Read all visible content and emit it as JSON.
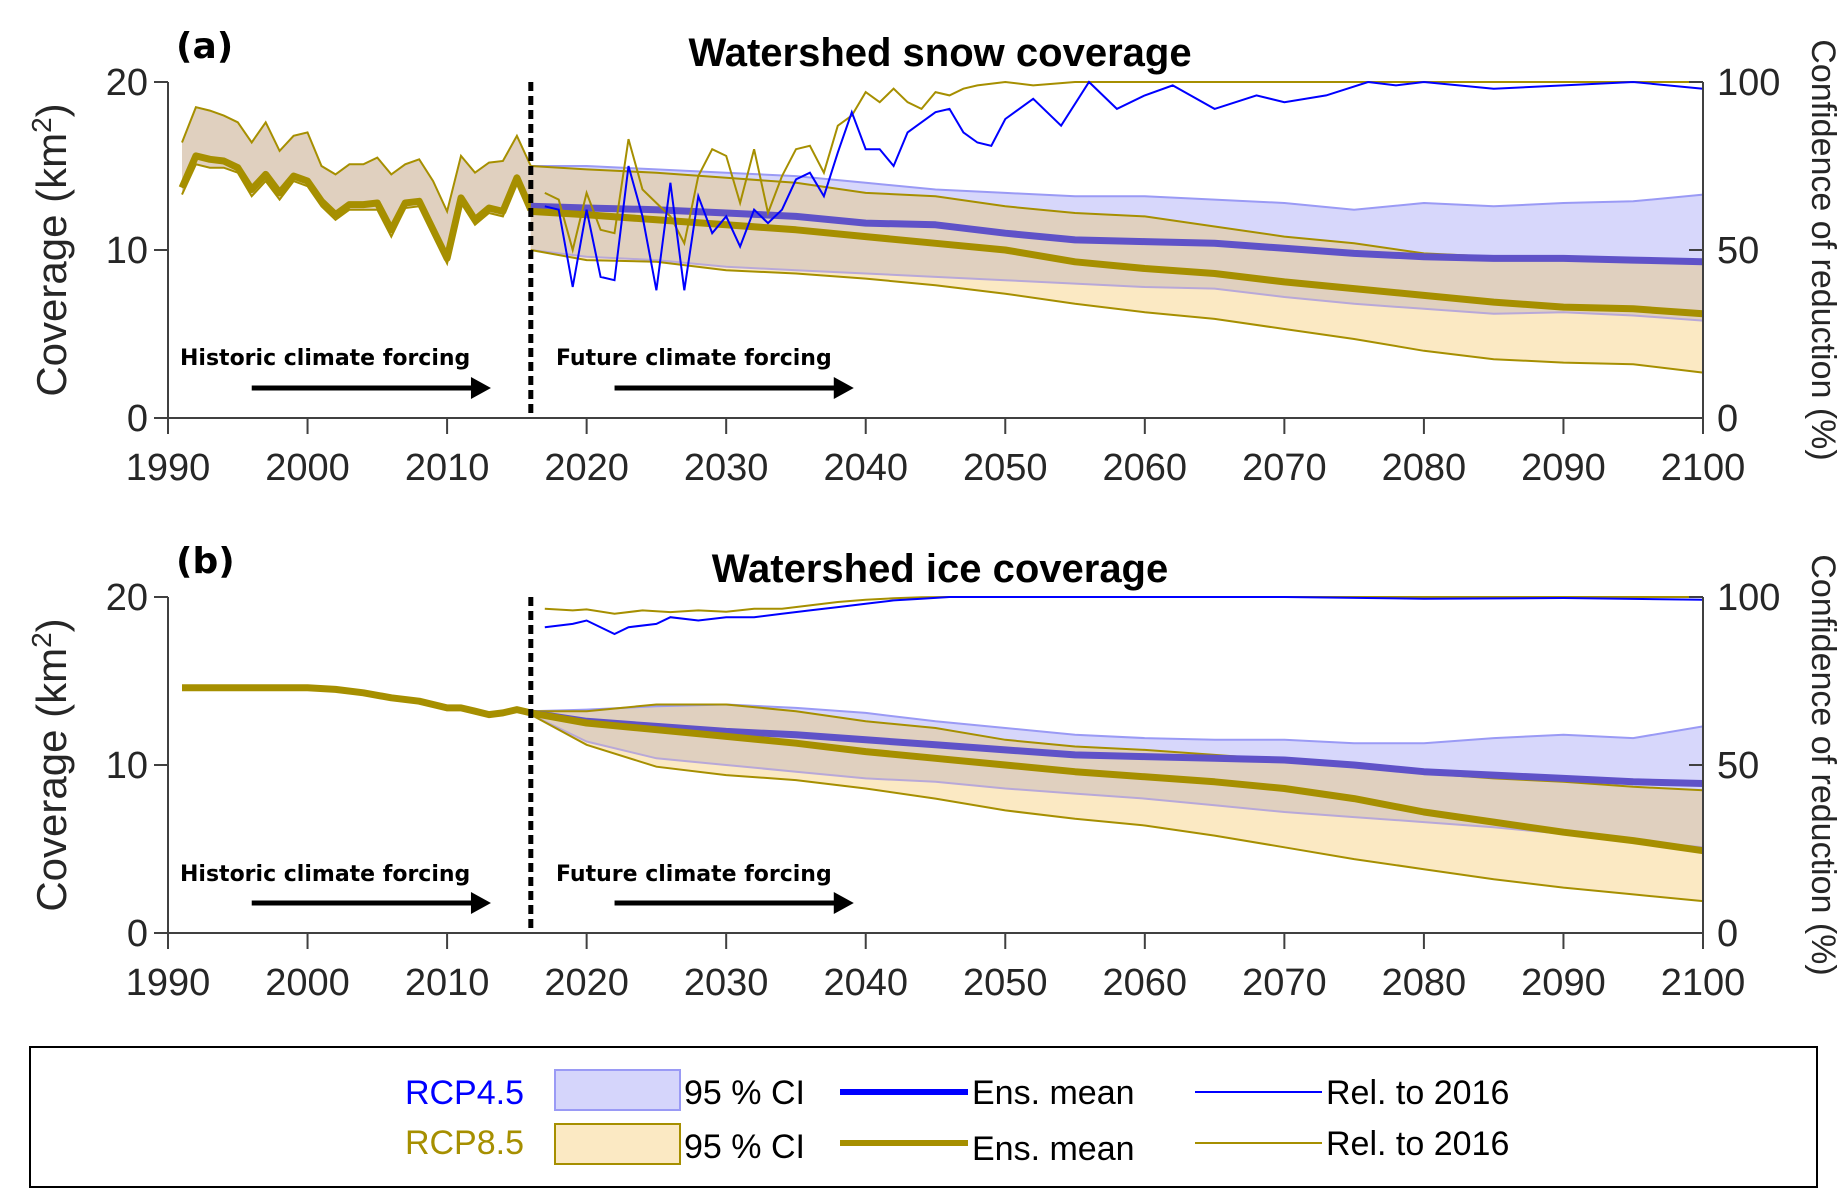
{
  "colors": {
    "rcp45": "#0000ff",
    "rcp45_mean": "#5f52c8",
    "rcp45_ci_fill": "#d5d5fb",
    "rcp45_ci_edge": "#9a9af5",
    "rcp85": "#a68f00",
    "rcp85_ci_fill": "#fbe9c3",
    "overlap_fill": "#e0d0bf",
    "axis": "#404040"
  },
  "chart_data": [
    {
      "panel": "(a)",
      "type": "line",
      "title": "Watershed snow coverage",
      "xlabel": "",
      "ylabel": "Coverage (km²)",
      "ylabel_right": "Confidence of reduction (%)",
      "xlim": [
        1990,
        2100
      ],
      "ylim": [
        0,
        20
      ],
      "ylim_right": [
        0,
        100
      ],
      "xticks": [
        "1990",
        "2000",
        "2010",
        "2020",
        "2030",
        "2040",
        "2050",
        "2060",
        "2070",
        "2080",
        "2090",
        "2100"
      ],
      "yticks": [
        "0",
        "10",
        "20"
      ],
      "yticks_right": [
        "0",
        "50",
        "100"
      ],
      "divider_year": 2016,
      "annotations": [
        "Historic climate forcing",
        "Future climate forcing"
      ],
      "historic": {
        "x": [
          1991,
          1992,
          1993,
          1994,
          1995,
          1996,
          1997,
          1998,
          1999,
          2000,
          2001,
          2002,
          2003,
          2004,
          2005,
          2006,
          2007,
          2008,
          2009,
          2010,
          2011,
          2012,
          2013,
          2014,
          2015,
          2016
        ],
        "mean": [
          13.7,
          15.6,
          15.4,
          15.3,
          14.9,
          13.6,
          14.5,
          13.4,
          14.4,
          14.1,
          12.9,
          12.1,
          12.7,
          12.7,
          12.8,
          11.2,
          12.8,
          12.9,
          11.2,
          9.5,
          13.1,
          11.8,
          12.5,
          12.3,
          14.3,
          12.4
        ],
        "ci_low": [
          13.3,
          15.1,
          14.9,
          14.9,
          14.6,
          13.2,
          14.1,
          13.0,
          14.1,
          13.8,
          12.6,
          11.8,
          12.4,
          12.4,
          12.4,
          10.8,
          12.5,
          12.6,
          10.9,
          9.2,
          12.8,
          11.5,
          12.2,
          12.0,
          14.0,
          12.2
        ],
        "ci_high": [
          16.4,
          18.5,
          18.3,
          18.0,
          17.6,
          16.4,
          17.6,
          15.9,
          16.8,
          17.0,
          15.0,
          14.5,
          15.1,
          15.1,
          15.5,
          14.5,
          15.1,
          15.4,
          14.1,
          12.3,
          15.6,
          14.6,
          15.2,
          15.3,
          16.8,
          15.0
        ]
      },
      "future_x": [
        2016,
        2020,
        2025,
        2030,
        2035,
        2040,
        2045,
        2050,
        2055,
        2060,
        2065,
        2070,
        2075,
        2080,
        2085,
        2090,
        2095,
        2100
      ],
      "series": [
        {
          "name": "RCP4.5 Ens. mean",
          "values": [
            12.6,
            12.5,
            12.4,
            12.2,
            12.0,
            11.6,
            11.5,
            11.0,
            10.6,
            10.5,
            10.4,
            10.1,
            9.8,
            9.6,
            9.5,
            9.5,
            9.4,
            9.3
          ]
        },
        {
          "name": "RCP4.5 95% CI low",
          "values": [
            10.0,
            9.6,
            9.4,
            9.0,
            8.8,
            8.6,
            8.4,
            8.2,
            8.0,
            7.8,
            7.7,
            7.2,
            6.8,
            6.5,
            6.2,
            6.3,
            6.1,
            5.8
          ]
        },
        {
          "name": "RCP4.5 95% CI high",
          "values": [
            15.0,
            15.0,
            14.8,
            14.6,
            14.4,
            14.0,
            13.6,
            13.4,
            13.2,
            13.2,
            13.0,
            12.8,
            12.4,
            12.8,
            12.6,
            12.8,
            12.9,
            13.3
          ]
        },
        {
          "name": "RCP8.5 Ens. mean",
          "values": [
            12.3,
            12.1,
            11.8,
            11.5,
            11.2,
            10.8,
            10.4,
            10.0,
            9.3,
            8.9,
            8.6,
            8.1,
            7.7,
            7.3,
            6.9,
            6.6,
            6.5,
            6.2
          ]
        },
        {
          "name": "RCP8.5 95% CI low",
          "values": [
            10.0,
            9.4,
            9.3,
            8.8,
            8.6,
            8.3,
            7.9,
            7.4,
            6.8,
            6.3,
            5.9,
            5.3,
            4.7,
            4.0,
            3.5,
            3.3,
            3.2,
            2.7
          ]
        },
        {
          "name": "RCP8.5 95% CI high",
          "values": [
            15.0,
            14.8,
            14.6,
            14.3,
            14.0,
            13.4,
            13.2,
            12.6,
            12.2,
            12.0,
            11.4,
            10.8,
            10.4,
            9.8,
            9.6,
            9.5,
            9.5,
            9.2
          ]
        },
        {
          "name": "RCP4.5 Rel. to 2016 (%)",
          "axis": "right",
          "x": [
            2017,
            2018,
            2019,
            2020,
            2021,
            2022,
            2023,
            2024,
            2025,
            2026,
            2027,
            2028,
            2029,
            2030,
            2031,
            2032,
            2033,
            2034,
            2035,
            2036,
            2037,
            2038,
            2039,
            2040,
            2041,
            2042,
            2043,
            2044,
            2045,
            2046,
            2047,
            2048,
            2049,
            2050,
            2052,
            2054,
            2056,
            2058,
            2060,
            2062,
            2065,
            2068,
            2070,
            2073,
            2076,
            2078,
            2080,
            2085,
            2090,
            2095,
            2100
          ],
          "values": [
            63,
            62,
            39,
            62,
            42,
            41,
            75,
            60,
            38,
            70,
            38,
            66,
            55,
            60,
            51,
            62,
            58,
            62,
            71,
            73,
            66,
            79,
            91,
            80,
            80,
            75,
            85,
            88,
            91,
            92,
            85,
            82,
            81,
            89,
            95,
            87,
            100,
            92,
            96,
            99,
            92,
            96,
            94,
            96,
            100,
            99,
            100,
            98,
            99,
            100,
            98
          ]
        },
        {
          "name": "RCP8.5 Rel. to 2016 (%)",
          "axis": "right",
          "x": [
            2017,
            2018,
            2019,
            2020,
            2021,
            2022,
            2023,
            2024,
            2025,
            2026,
            2027,
            2028,
            2029,
            2030,
            2031,
            2032,
            2033,
            2034,
            2035,
            2036,
            2037,
            2038,
            2039,
            2040,
            2041,
            2042,
            2043,
            2044,
            2045,
            2046,
            2047,
            2048,
            2050,
            2052,
            2055,
            2058,
            2060,
            2065,
            2070,
            2080,
            2090,
            2100
          ],
          "values": [
            67,
            65,
            50,
            67,
            56,
            55,
            83,
            68,
            64,
            60,
            52,
            72,
            80,
            78,
            64,
            80,
            61,
            72,
            80,
            81,
            73,
            87,
            90,
            97,
            94,
            98,
            94,
            92,
            97,
            96,
            98,
            99,
            100,
            99,
            100,
            100,
            100,
            100,
            100,
            100,
            100,
            100
          ]
        }
      ]
    },
    {
      "panel": "(b)",
      "type": "line",
      "title": "Watershed ice coverage",
      "xlabel": "",
      "ylabel": "Coverage (km²)",
      "ylabel_right": "Confidence of reduction (%)",
      "xlim": [
        1990,
        2100
      ],
      "ylim": [
        0,
        20
      ],
      "ylim_right": [
        0,
        100
      ],
      "xticks": [
        "1990",
        "2000",
        "2010",
        "2020",
        "2030",
        "2040",
        "2050",
        "2060",
        "2070",
        "2080",
        "2090",
        "2100"
      ],
      "yticks": [
        "0",
        "10",
        "20"
      ],
      "yticks_right": [
        "0",
        "50",
        "100"
      ],
      "divider_year": 2016,
      "annotations": [
        "Historic climate forcing",
        "Future climate forcing"
      ],
      "historic": {
        "x": [
          1991,
          1995,
          2000,
          2002,
          2004,
          2006,
          2008,
          2010,
          2011,
          2012,
          2013,
          2014,
          2015,
          2016
        ],
        "mean": [
          14.6,
          14.6,
          14.6,
          14.5,
          14.3,
          14.0,
          13.8,
          13.4,
          13.4,
          13.2,
          13.0,
          13.1,
          13.3,
          13.1
        ]
      },
      "future_x": [
        2016,
        2020,
        2025,
        2030,
        2035,
        2040,
        2045,
        2050,
        2055,
        2060,
        2065,
        2070,
        2075,
        2080,
        2085,
        2090,
        2095,
        2100
      ],
      "series": [
        {
          "name": "RCP4.5 Ens. mean",
          "values": [
            13.1,
            12.6,
            12.3,
            12.0,
            11.8,
            11.5,
            11.2,
            10.9,
            10.6,
            10.5,
            10.4,
            10.3,
            10.0,
            9.6,
            9.4,
            9.2,
            9.0,
            8.9
          ]
        },
        {
          "name": "RCP4.5 95% CI low",
          "values": [
            13.0,
            11.4,
            10.4,
            10.0,
            9.6,
            9.2,
            9.0,
            8.6,
            8.3,
            8.0,
            7.6,
            7.2,
            6.9,
            6.6,
            6.3,
            5.9,
            5.5,
            5.1
          ]
        },
        {
          "name": "RCP4.5 95% CI high",
          "values": [
            13.2,
            13.3,
            13.5,
            13.6,
            13.4,
            13.1,
            12.6,
            12.2,
            11.8,
            11.6,
            11.5,
            11.5,
            11.3,
            11.3,
            11.6,
            11.8,
            11.6,
            12.3
          ]
        },
        {
          "name": "RCP8.5 Ens. mean",
          "values": [
            13.1,
            12.5,
            12.1,
            11.7,
            11.3,
            10.8,
            10.4,
            10.0,
            9.6,
            9.3,
            9.0,
            8.6,
            8.0,
            7.2,
            6.6,
            6.0,
            5.5,
            4.9
          ]
        },
        {
          "name": "RCP8.5 95% CI low",
          "values": [
            13.0,
            11.2,
            9.9,
            9.4,
            9.1,
            8.6,
            8.0,
            7.3,
            6.8,
            6.4,
            5.8,
            5.1,
            4.4,
            3.8,
            3.2,
            2.7,
            2.3,
            1.9
          ]
        },
        {
          "name": "RCP8.5 95% CI high",
          "values": [
            13.2,
            13.2,
            13.6,
            13.6,
            13.2,
            12.6,
            12.2,
            11.5,
            11.1,
            10.9,
            10.6,
            10.3,
            10.0,
            9.5,
            9.2,
            9.0,
            8.7,
            8.5
          ]
        },
        {
          "name": "RCP4.5 Rel. to 2016 (%)",
          "axis": "right",
          "x": [
            2017,
            2019,
            2020,
            2022,
            2023,
            2025,
            2026,
            2028,
            2030,
            2032,
            2034,
            2036,
            2038,
            2040,
            2042,
            2044,
            2046,
            2050,
            2060,
            2070,
            2080,
            2090,
            2100
          ],
          "values": [
            91,
            92,
            93,
            89,
            91,
            92,
            94,
            93,
            94,
            94,
            95,
            96,
            97,
            98,
            99,
            99.5,
            100,
            100,
            100,
            100,
            99.5,
            99.7,
            99.2
          ]
        },
        {
          "name": "RCP8.5 Rel. to 2016 (%)",
          "axis": "right",
          "x": [
            2017,
            2019,
            2020,
            2022,
            2024,
            2026,
            2028,
            2030,
            2032,
            2034,
            2036,
            2038,
            2040,
            2042,
            2044,
            2046,
            2050,
            2060,
            2070,
            2080,
            2090,
            2100
          ],
          "values": [
            96.5,
            96,
            96.3,
            95,
            96,
            95.5,
            96,
            95.6,
            96.5,
            96.5,
            97.5,
            98.5,
            99.2,
            99.6,
            99.9,
            100,
            100,
            100,
            100,
            100,
            100,
            100
          ]
        }
      ]
    }
  ],
  "legend": {
    "rows": [
      {
        "scenario": "RCP4.5",
        "ci_label": "95 % CI",
        "mean_label": "Ens. mean",
        "rel_label": "Rel. to 2016"
      },
      {
        "scenario": "RCP8.5",
        "ci_label": "95 % CI",
        "mean_label": "Ens. mean",
        "rel_label": "Rel. to 2016"
      }
    ]
  }
}
